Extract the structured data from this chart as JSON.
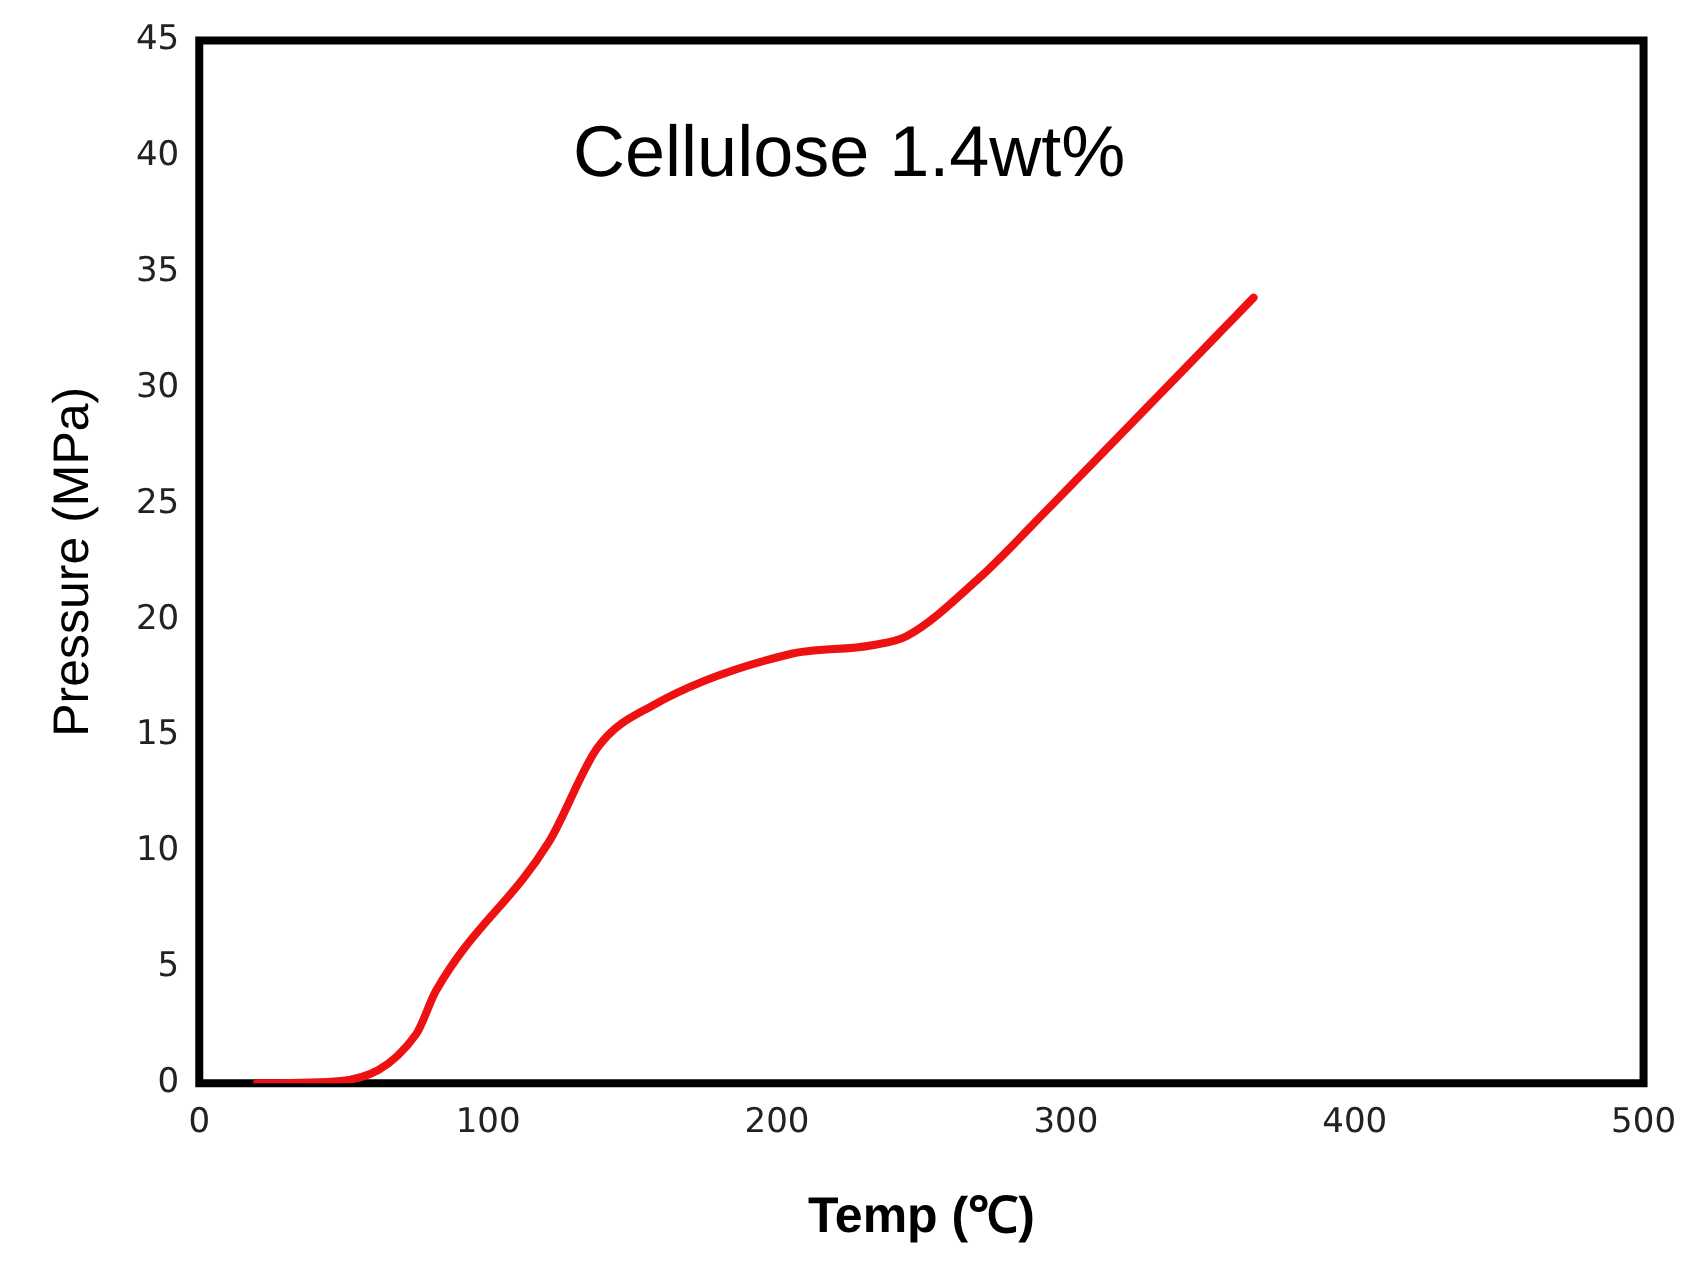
{
  "chart_data": {
    "type": "line",
    "xlabel": "Temp (℃)",
    "ylabel": "Pressure (MPa)",
    "annotations": [
      "Cellulose 1.4wt%"
    ],
    "series": [
      {
        "color": "#ee1111",
        "x": [
          20,
          49,
          75,
          82,
          121,
          138,
          157,
          204,
          233,
          245,
          270,
          294,
          365
        ],
        "values": [
          0,
          0.1,
          2.1,
          4,
          10.4,
          14.5,
          16.3,
          18.5,
          18.9,
          19.3,
          21.8,
          24.8,
          33.9
        ]
      }
    ],
    "xlim": [
      0,
      500
    ],
    "xticks": [
      0,
      100,
      200,
      300,
      400,
      500
    ],
    "ylim": [
      0,
      45
    ],
    "yticks": [
      0,
      5,
      10,
      15,
      20,
      25,
      30,
      35,
      40,
      45
    ],
    "grid": false,
    "legend": false,
    "marker": "none",
    "line_style": "solid"
  }
}
